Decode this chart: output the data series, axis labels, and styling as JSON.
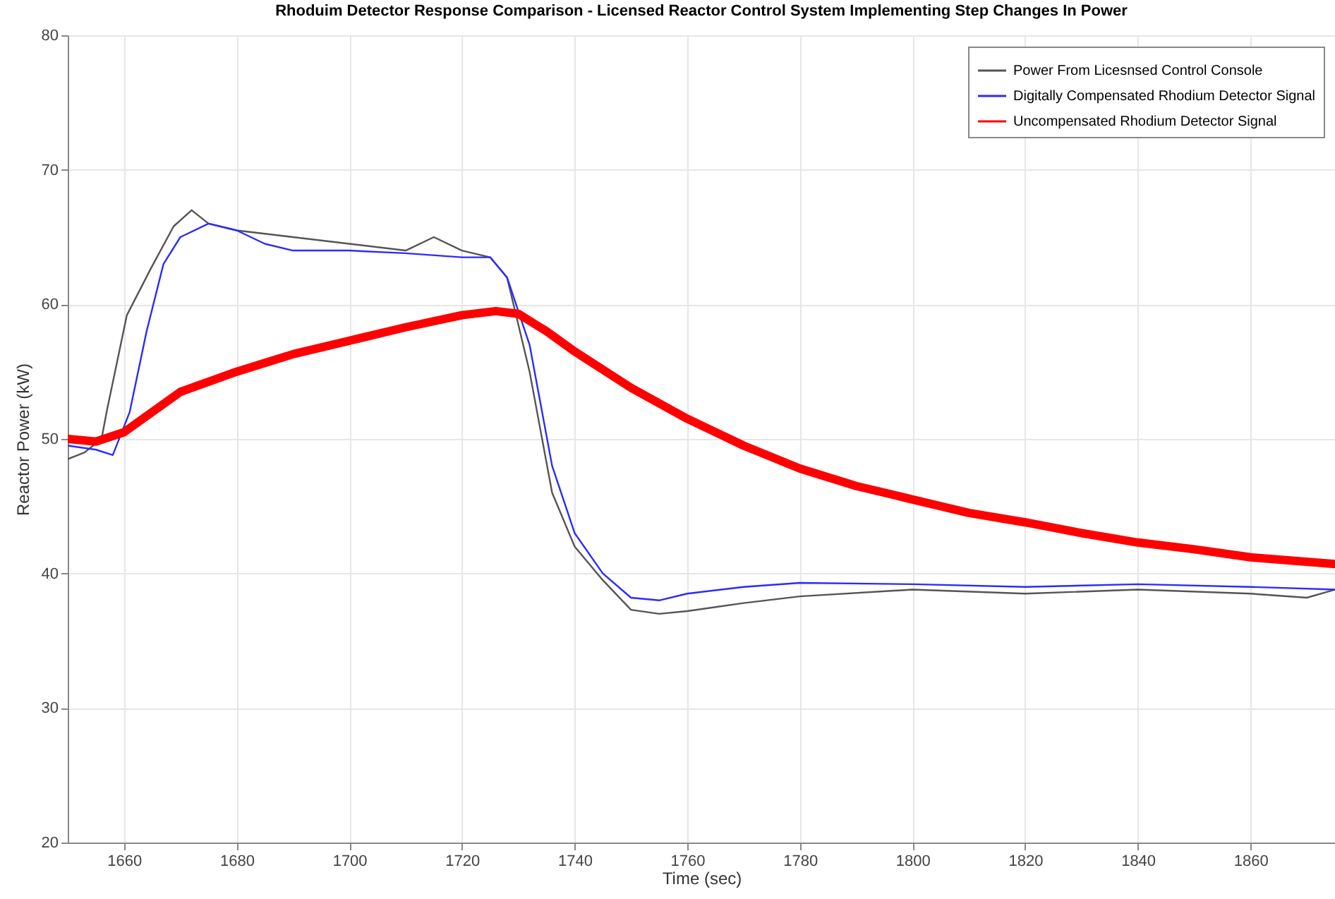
{
  "chart_data": {
    "type": "line",
    "title": "Rhoduim Detector Response Comparison - Licensed Reactor Control System Implementing Step Changes In Power",
    "xlabel": "Time (sec)",
    "ylabel": "Reactor Power (kW)",
    "xlim": [
      1650,
      1875
    ],
    "xticks": [
      1660,
      1680,
      1700,
      1720,
      1740,
      1760,
      1780,
      1800,
      1820,
      1840,
      1860
    ],
    "ylim": [
      20,
      80
    ],
    "yticks": [
      20,
      30,
      40,
      50,
      60,
      70,
      80
    ],
    "grid": true,
    "legend": "top right",
    "series": [
      {
        "name": "Power From Licesnsed Control Console",
        "color": "#555555",
        "x": [
          1650,
          1653,
          1656,
          1657,
          1660.5,
          1664.8,
          1668.8,
          1672,
          1675,
          1680,
          1690,
          1700,
          1710,
          1715,
          1720,
          1725,
          1728,
          1732,
          1736,
          1740,
          1745,
          1750,
          1755,
          1760,
          1770,
          1780,
          1800,
          1820,
          1840,
          1860,
          1870,
          1875
        ],
        "values": [
          48.5,
          49,
          50,
          52.2,
          59.2,
          62.7,
          65.8,
          67,
          66,
          65.5,
          65,
          64.5,
          64,
          65,
          64,
          63.5,
          62,
          55,
          46,
          42,
          39.5,
          37.3,
          37,
          37.2,
          37.8,
          38.3,
          38.8,
          38.5,
          38.8,
          38.5,
          38.2,
          38.8
        ]
      },
      {
        "name": "Digitally Compensated Rhodium Detector Signal",
        "color": "#2b2bff",
        "x": [
          1650,
          1655,
          1658,
          1661,
          1664,
          1667,
          1670,
          1675,
          1680,
          1685,
          1690,
          1700,
          1710,
          1720,
          1725,
          1728,
          1732,
          1736,
          1740,
          1745,
          1750,
          1755,
          1760,
          1770,
          1780,
          1800,
          1820,
          1840,
          1860,
          1875
        ],
        "values": [
          49.5,
          49.2,
          48.8,
          52,
          58,
          63,
          65,
          66,
          65.5,
          64.5,
          64,
          64,
          63.8,
          63.5,
          63.5,
          62,
          57,
          48,
          43,
          40,
          38.2,
          38,
          38.5,
          39,
          39.3,
          39.2,
          39,
          39.2,
          39,
          38.8
        ]
      },
      {
        "name": "Uncompensated Rhodium Detector Signal",
        "color": "#ff0000",
        "x": [
          1650,
          1655,
          1660,
          1665,
          1670,
          1680,
          1690,
          1700,
          1710,
          1720,
          1726,
          1730,
          1735,
          1740,
          1750,
          1760,
          1770,
          1780,
          1790,
          1800,
          1810,
          1820,
          1830,
          1840,
          1850,
          1860,
          1875
        ],
        "values": [
          50,
          49.8,
          50.5,
          52,
          53.5,
          55,
          56.3,
          57.3,
          58.3,
          59.2,
          59.5,
          59.3,
          58,
          56.5,
          53.8,
          51.5,
          49.5,
          47.8,
          46.5,
          45.5,
          44.5,
          43.8,
          43,
          42.3,
          41.8,
          41.2,
          40.7
        ]
      }
    ]
  }
}
